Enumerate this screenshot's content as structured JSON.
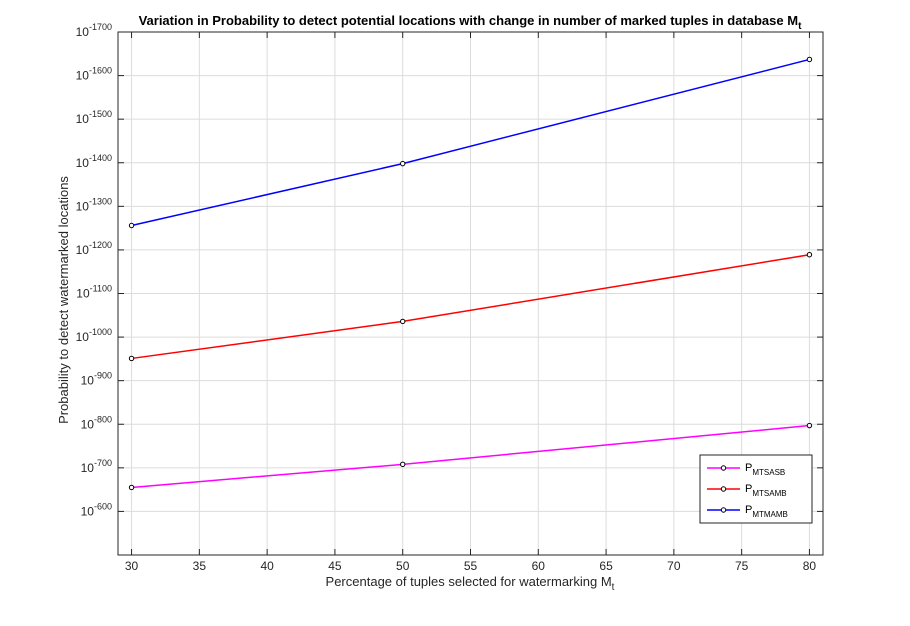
{
  "chart_data": {
    "type": "line",
    "title": "Variation in Probability to detect potential locations with change in number of marked tuples in database M",
    "title_subscript": "t",
    "xlabel": "Percentage of tuples selected for watermarking M",
    "xlabel_subscript": "t",
    "ylabel": "Probability to detect watermarked locations",
    "y_scale": "log",
    "y_tick_base": "10",
    "x": [
      30,
      50,
      80
    ],
    "xlim": [
      29,
      81
    ],
    "x_ticks": [
      30,
      35,
      40,
      45,
      50,
      55,
      60,
      65,
      70,
      75,
      80
    ],
    "ylim_exponent": [
      -1700,
      -500
    ],
    "y_tick_exponents": [
      -1700,
      -1600,
      -1500,
      -1400,
      -1300,
      -1200,
      -1100,
      -1000,
      -900,
      -800,
      -700,
      -600
    ],
    "grid": true,
    "legend_position": "bottom-right",
    "series": [
      {
        "name": "P",
        "name_subscript": "MTSASB",
        "color": "#ff00ff",
        "log10_values": [
          -655,
          -708,
          -797
        ]
      },
      {
        "name": "P",
        "name_subscript": "MTSAMB",
        "color": "#ff0000",
        "log10_values": [
          -951,
          -1036,
          -1189
        ]
      },
      {
        "name": "P",
        "name_subscript": "MTMAMB",
        "color": "#0000ff",
        "log10_values": [
          -1256,
          -1398,
          -1637
        ]
      }
    ]
  }
}
